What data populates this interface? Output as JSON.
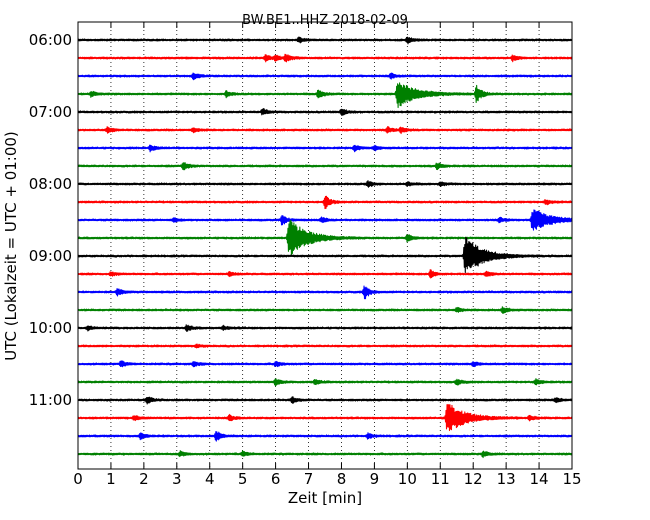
{
  "chart_data": {
    "type": "line",
    "title": "BW.BE1..HHZ 2018-02-09",
    "xlabel": "Zeit  [min]",
    "ylabel": "UTC (Lokalzeit = UTC + 01:00)",
    "xlim": [
      0,
      15
    ],
    "x_ticks": [
      "0",
      "1",
      "2",
      "3",
      "4",
      "5",
      "6",
      "7",
      "8",
      "9",
      "10",
      "11",
      "12",
      "13",
      "14",
      "15"
    ],
    "y_tick_labels": [
      "06:00",
      "07:00",
      "08:00",
      "09:00",
      "10:00",
      "11:00"
    ],
    "grid": "vertical dotted",
    "color_cycle": [
      "#000000",
      "#ff0000",
      "#0000ff",
      "#008000"
    ],
    "traces": [
      {
        "start": "06:00",
        "color": "#000000",
        "events": [
          [
            6.7,
            0.25
          ],
          [
            10.0,
            0.35
          ]
        ]
      },
      {
        "start": "06:15",
        "color": "#ff0000",
        "events": [
          [
            5.7,
            0.3
          ],
          [
            6.0,
            0.25
          ],
          [
            6.3,
            0.45
          ],
          [
            13.2,
            0.3
          ]
        ]
      },
      {
        "start": "06:30",
        "color": "#0000ff",
        "events": [
          [
            3.5,
            0.35
          ],
          [
            9.5,
            0.25
          ]
        ]
      },
      {
        "start": "06:45",
        "color": "#008000",
        "events": [
          [
            0.4,
            0.3
          ],
          [
            4.5,
            0.3
          ],
          [
            7.3,
            0.45
          ],
          [
            9.7,
            1.4
          ],
          [
            12.1,
            0.9
          ]
        ]
      },
      {
        "start": "07:00",
        "color": "#000000",
        "events": [
          [
            5.6,
            0.3
          ],
          [
            8.0,
            0.35
          ]
        ]
      },
      {
        "start": "07:15",
        "color": "#ff0000",
        "events": [
          [
            0.9,
            0.3
          ],
          [
            3.5,
            0.2
          ],
          [
            9.4,
            0.3
          ],
          [
            9.8,
            0.3
          ]
        ]
      },
      {
        "start": "07:30",
        "color": "#0000ff",
        "events": [
          [
            2.2,
            0.3
          ],
          [
            8.4,
            0.3
          ],
          [
            9.0,
            0.25
          ]
        ]
      },
      {
        "start": "07:45",
        "color": "#008000",
        "events": [
          [
            3.2,
            0.4
          ],
          [
            10.9,
            0.3
          ]
        ]
      },
      {
        "start": "08:00",
        "color": "#000000",
        "events": [
          [
            8.8,
            0.3
          ],
          [
            10.0,
            0.2
          ],
          [
            11.0,
            0.2
          ]
        ]
      },
      {
        "start": "08:15",
        "color": "#ff0000",
        "events": [
          [
            7.5,
            0.7
          ],
          [
            14.2,
            0.25
          ]
        ]
      },
      {
        "start": "08:30",
        "color": "#0000ff",
        "events": [
          [
            2.9,
            0.2
          ],
          [
            6.2,
            0.5
          ],
          [
            7.4,
            0.25
          ],
          [
            12.8,
            0.25
          ],
          [
            13.8,
            1.2
          ]
        ]
      },
      {
        "start": "08:45",
        "color": "#008000",
        "events": [
          [
            6.4,
            2.0
          ],
          [
            10.0,
            0.35
          ]
        ]
      },
      {
        "start": "09:00",
        "color": "#000000",
        "events": [
          [
            11.75,
            2.0
          ]
        ]
      },
      {
        "start": "09:15",
        "color": "#ff0000",
        "events": [
          [
            1.0,
            0.2
          ],
          [
            4.6,
            0.2
          ],
          [
            10.7,
            0.4
          ],
          [
            12.4,
            0.3
          ]
        ]
      },
      {
        "start": "09:30",
        "color": "#0000ff",
        "events": [
          [
            1.2,
            0.35
          ],
          [
            8.7,
            0.7
          ]
        ]
      },
      {
        "start": "09:45",
        "color": "#008000",
        "events": [
          [
            11.5,
            0.25
          ],
          [
            12.9,
            0.3
          ]
        ]
      },
      {
        "start": "10:00",
        "color": "#000000",
        "events": [
          [
            0.3,
            0.2
          ],
          [
            3.3,
            0.3
          ],
          [
            4.4,
            0.2
          ]
        ]
      },
      {
        "start": "10:15",
        "color": "#ff0000",
        "events": [
          [
            3.6,
            0.15
          ]
        ]
      },
      {
        "start": "10:30",
        "color": "#0000ff",
        "events": [
          [
            1.3,
            0.3
          ],
          [
            3.5,
            0.25
          ],
          [
            6.0,
            0.25
          ],
          [
            12.0,
            0.25
          ]
        ]
      },
      {
        "start": "10:45",
        "color": "#008000",
        "events": [
          [
            6.0,
            0.3
          ],
          [
            7.2,
            0.25
          ],
          [
            11.5,
            0.3
          ],
          [
            13.9,
            0.3
          ]
        ]
      },
      {
        "start": "11:00",
        "color": "#000000",
        "events": [
          [
            2.1,
            0.35
          ],
          [
            6.5,
            0.3
          ],
          [
            14.5,
            0.25
          ]
        ]
      },
      {
        "start": "11:15",
        "color": "#ff0000",
        "events": [
          [
            1.7,
            0.25
          ],
          [
            4.6,
            0.3
          ],
          [
            11.2,
            1.6
          ],
          [
            13.7,
            0.25
          ]
        ]
      },
      {
        "start": "11:30",
        "color": "#0000ff",
        "events": [
          [
            1.9,
            0.3
          ],
          [
            4.2,
            0.55
          ],
          [
            8.8,
            0.25
          ]
        ]
      },
      {
        "start": "11:45",
        "color": "#008000",
        "events": [
          [
            3.1,
            0.25
          ],
          [
            5.0,
            0.25
          ],
          [
            12.3,
            0.3
          ]
        ]
      }
    ]
  }
}
